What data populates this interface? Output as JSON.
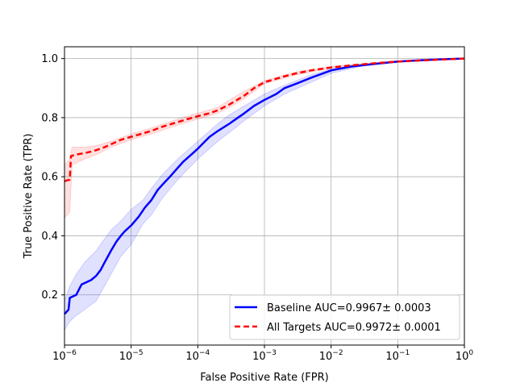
{
  "chart_data": {
    "type": "line",
    "title": "",
    "xlabel": "False Positive Rate (FPR)",
    "ylabel": "True Positive Rate (TPR)",
    "xscale": "log",
    "xlim": [
      1e-06,
      1
    ],
    "ylim": [
      0.03,
      1.04
    ],
    "grid": true,
    "legend_position": "lower-right",
    "x_ticks": [
      {
        "value": 1e-06,
        "base": "10",
        "exp": "−6"
      },
      {
        "value": 1e-05,
        "base": "10",
        "exp": "−5"
      },
      {
        "value": 0.0001,
        "base": "10",
        "exp": "−4"
      },
      {
        "value": 0.001,
        "base": "10",
        "exp": "−3"
      },
      {
        "value": 0.01,
        "base": "10",
        "exp": "−2"
      },
      {
        "value": 0.1,
        "base": "10",
        "exp": "−1"
      },
      {
        "value": 1,
        "base": "10",
        "exp": "0"
      }
    ],
    "y_ticks": [
      {
        "value": 0.2,
        "label": "0.2"
      },
      {
        "value": 0.4,
        "label": "0.4"
      },
      {
        "value": 0.6,
        "label": "0.6"
      },
      {
        "value": 0.8,
        "label": "0.8"
      },
      {
        "value": 1.0,
        "label": "1.0"
      }
    ],
    "series": [
      {
        "name": "Baseline AUC=0.9967± 0.0003",
        "color": "#0000ff",
        "style": "solid",
        "band_color": "#0000ff",
        "points": [
          [
            1e-06,
            0.135
          ],
          [
            1.15e-06,
            0.15
          ],
          [
            1.2e-06,
            0.19
          ],
          [
            1.5e-06,
            0.2
          ],
          [
            1.8e-06,
            0.235
          ],
          [
            2e-06,
            0.24
          ],
          [
            2.5e-06,
            0.25
          ],
          [
            3e-06,
            0.265
          ],
          [
            3.5e-06,
            0.285
          ],
          [
            4e-06,
            0.31
          ],
          [
            5e-06,
            0.35
          ],
          [
            6e-06,
            0.38
          ],
          [
            7e-06,
            0.4
          ],
          [
            8e-06,
            0.415
          ],
          [
            1e-05,
            0.435
          ],
          [
            1.3e-05,
            0.465
          ],
          [
            1.6e-05,
            0.495
          ],
          [
            2e-05,
            0.52
          ],
          [
            2.5e-05,
            0.555
          ],
          [
            3e-05,
            0.575
          ],
          [
            4e-05,
            0.605
          ],
          [
            5e-05,
            0.63
          ],
          [
            6e-05,
            0.65
          ],
          [
            8e-05,
            0.675
          ],
          [
            0.0001,
            0.695
          ],
          [
            0.00015,
            0.735
          ],
          [
            0.0002,
            0.755
          ],
          [
            0.0003,
            0.78
          ],
          [
            0.0004,
            0.8
          ],
          [
            0.0005,
            0.815
          ],
          [
            0.0007,
            0.84
          ],
          [
            0.001,
            0.86
          ],
          [
            0.0015,
            0.88
          ],
          [
            0.002,
            0.9
          ],
          [
            0.003,
            0.915
          ],
          [
            0.005,
            0.935
          ],
          [
            0.007,
            0.947
          ],
          [
            0.01,
            0.96
          ],
          [
            0.02,
            0.973
          ],
          [
            0.05,
            0.983
          ],
          [
            0.1,
            0.99
          ],
          [
            0.2,
            0.994
          ],
          [
            0.5,
            0.998
          ],
          [
            1,
            1.0
          ]
        ],
        "band_lower": [
          [
            1e-06,
            0.08
          ],
          [
            1.2e-06,
            0.11
          ],
          [
            1.5e-06,
            0.13
          ],
          [
            2e-06,
            0.15
          ],
          [
            3e-06,
            0.18
          ],
          [
            4e-06,
            0.23
          ],
          [
            5e-06,
            0.27
          ],
          [
            7e-06,
            0.33
          ],
          [
            1e-05,
            0.37
          ],
          [
            1.5e-05,
            0.44
          ],
          [
            2e-05,
            0.47
          ],
          [
            3e-05,
            0.53
          ],
          [
            5e-05,
            0.59
          ],
          [
            0.0001,
            0.66
          ],
          [
            0.0002,
            0.72
          ],
          [
            0.0003,
            0.75
          ],
          [
            0.0005,
            0.79
          ],
          [
            0.001,
            0.84
          ],
          [
            0.002,
            0.88
          ],
          [
            0.005,
            0.92
          ],
          [
            0.01,
            0.95
          ],
          [
            0.03,
            0.975
          ],
          [
            0.1,
            0.988
          ],
          [
            1,
            1.0
          ]
        ],
        "band_upper": [
          [
            1e-06,
            0.18
          ],
          [
            1.2e-06,
            0.23
          ],
          [
            1.5e-06,
            0.27
          ],
          [
            2e-06,
            0.31
          ],
          [
            3e-06,
            0.35
          ],
          [
            4e-06,
            0.39
          ],
          [
            5e-06,
            0.42
          ],
          [
            7e-06,
            0.45
          ],
          [
            1e-05,
            0.49
          ],
          [
            1.5e-05,
            0.52
          ],
          [
            2e-05,
            0.56
          ],
          [
            3e-05,
            0.61
          ],
          [
            5e-05,
            0.66
          ],
          [
            0.0001,
            0.72
          ],
          [
            0.0002,
            0.78
          ],
          [
            0.0003,
            0.81
          ],
          [
            0.0005,
            0.84
          ],
          [
            0.001,
            0.88
          ],
          [
            0.002,
            0.91
          ],
          [
            0.005,
            0.945
          ],
          [
            0.01,
            0.965
          ],
          [
            0.03,
            0.98
          ],
          [
            0.1,
            0.992
          ],
          [
            1,
            1.0
          ]
        ]
      },
      {
        "name": "All Targets AUC=0.9972± 0.0001",
        "color": "#ff0000",
        "style": "dashed",
        "band_color": "#ff0000",
        "points": [
          [
            1e-06,
            0.585
          ],
          [
            1.2e-06,
            0.59
          ],
          [
            1.25e-06,
            0.67
          ],
          [
            1.5e-06,
            0.675
          ],
          [
            2e-06,
            0.68
          ],
          [
            2.5e-06,
            0.685
          ],
          [
            3e-06,
            0.69
          ],
          [
            4e-06,
            0.7
          ],
          [
            5e-06,
            0.71
          ],
          [
            7e-06,
            0.725
          ],
          [
            1e-05,
            0.735
          ],
          [
            2e-05,
            0.755
          ],
          [
            3e-05,
            0.77
          ],
          [
            5e-05,
            0.785
          ],
          [
            7e-05,
            0.795
          ],
          [
            0.0001,
            0.805
          ],
          [
            0.00015,
            0.815
          ],
          [
            0.0002,
            0.825
          ],
          [
            0.0003,
            0.845
          ],
          [
            0.0005,
            0.875
          ],
          [
            0.0007,
            0.9
          ],
          [
            0.001,
            0.92
          ],
          [
            0.002,
            0.94
          ],
          [
            0.003,
            0.95
          ],
          [
            0.005,
            0.96
          ],
          [
            0.01,
            0.97
          ],
          [
            0.02,
            0.977
          ],
          [
            0.05,
            0.985
          ],
          [
            0.1,
            0.99
          ],
          [
            0.3,
            0.995
          ],
          [
            1,
            1.0
          ]
        ],
        "band_lower": [
          [
            1e-06,
            0.46
          ],
          [
            1.2e-06,
            0.48
          ],
          [
            1.3e-06,
            0.64
          ],
          [
            2e-06,
            0.66
          ],
          [
            3e-06,
            0.675
          ],
          [
            5e-06,
            0.7
          ],
          [
            1e-05,
            0.725
          ],
          [
            2e-05,
            0.745
          ],
          [
            5e-05,
            0.775
          ],
          [
            0.0001,
            0.795
          ],
          [
            0.0002,
            0.815
          ],
          [
            0.0003,
            0.835
          ],
          [
            0.0005,
            0.865
          ],
          [
            0.001,
            0.915
          ],
          [
            0.003,
            0.945
          ],
          [
            0.01,
            0.967
          ],
          [
            0.1,
            0.988
          ],
          [
            1,
            1.0
          ]
        ],
        "band_upper": [
          [
            1e-06,
            0.64
          ],
          [
            1.2e-06,
            0.66
          ],
          [
            1.3e-06,
            0.7
          ],
          [
            2e-06,
            0.7
          ],
          [
            3e-06,
            0.705
          ],
          [
            5e-06,
            0.72
          ],
          [
            1e-05,
            0.745
          ],
          [
            2e-05,
            0.765
          ],
          [
            5e-05,
            0.795
          ],
          [
            0.0001,
            0.815
          ],
          [
            0.0002,
            0.835
          ],
          [
            0.0003,
            0.86
          ],
          [
            0.0005,
            0.89
          ],
          [
            0.001,
            0.925
          ],
          [
            0.003,
            0.955
          ],
          [
            0.01,
            0.973
          ],
          [
            0.1,
            0.992
          ],
          [
            1,
            1.0
          ]
        ]
      }
    ]
  }
}
